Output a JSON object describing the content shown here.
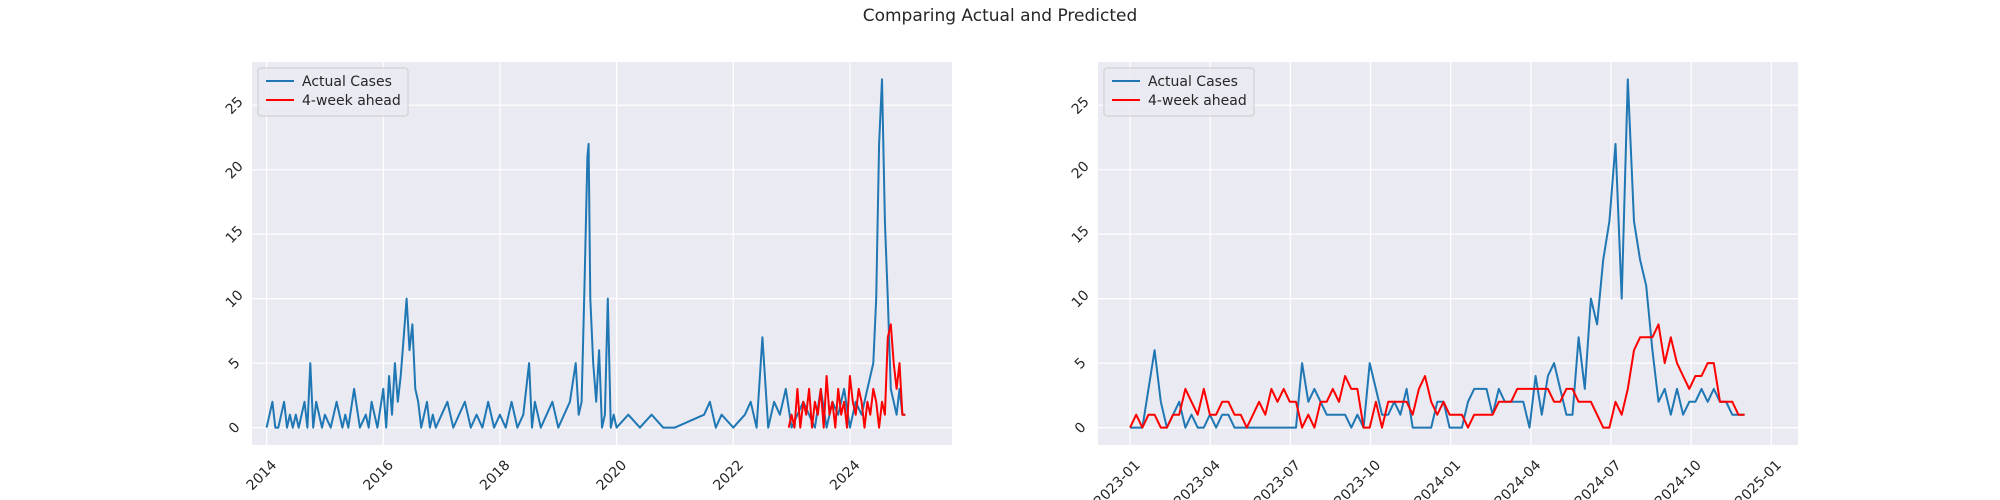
{
  "title": "Comparing Actual and Predicted",
  "colors": {
    "actual": "#1f77b4",
    "predicted": "#ff0000",
    "bg": "#eaeaf2",
    "grid": "#ffffff",
    "text": "#262626"
  },
  "chart_data": [
    {
      "type": "line",
      "title": "",
      "xlabel": "",
      "ylabel": "",
      "x_unit": "year",
      "xlim": [
        2013.75,
        2025.75
      ],
      "ylim": [
        -1.35,
        28.35
      ],
      "xticks": [
        2014,
        2016,
        2018,
        2020,
        2022,
        2024
      ],
      "xtick_labels": [
        "2014",
        "2016",
        "2018",
        "2020",
        "2022",
        "2024"
      ],
      "yticks": [
        0,
        5,
        10,
        15,
        20,
        25
      ],
      "ytick_labels": [
        "0",
        "5",
        "10",
        "15",
        "20",
        "25"
      ],
      "legend_position": "top-left",
      "series": [
        {
          "name": "Actual Cases",
          "color": "#1f77b4",
          "x": [
            2014.0,
            2014.1,
            2014.15,
            2014.2,
            2014.3,
            2014.35,
            2014.4,
            2014.45,
            2014.5,
            2014.55,
            2014.6,
            2014.65,
            2014.7,
            2014.75,
            2014.8,
            2014.85,
            2014.9,
            2014.95,
            2015.0,
            2015.1,
            2015.2,
            2015.3,
            2015.35,
            2015.4,
            2015.5,
            2015.6,
            2015.7,
            2015.75,
            2015.8,
            2015.9,
            2016.0,
            2016.05,
            2016.1,
            2016.15,
            2016.2,
            2016.25,
            2016.3,
            2016.35,
            2016.4,
            2016.45,
            2016.5,
            2016.55,
            2016.6,
            2016.65,
            2016.7,
            2016.75,
            2016.8,
            2016.85,
            2016.9,
            2017.0,
            2017.1,
            2017.2,
            2017.3,
            2017.4,
            2017.5,
            2017.6,
            2017.7,
            2017.8,
            2017.9,
            2018.0,
            2018.1,
            2018.2,
            2018.3,
            2018.4,
            2018.5,
            2018.55,
            2018.6,
            2018.7,
            2018.8,
            2018.9,
            2019.0,
            2019.1,
            2019.2,
            2019.3,
            2019.35,
            2019.4,
            2019.45,
            2019.5,
            2019.52,
            2019.55,
            2019.6,
            2019.65,
            2019.7,
            2019.75,
            2019.8,
            2019.85,
            2019.9,
            2019.95,
            2020.0,
            2020.2,
            2020.4,
            2020.6,
            2020.8,
            2021.0,
            2021.5,
            2021.6,
            2021.7,
            2021.8,
            2022.0,
            2022.2,
            2022.3,
            2022.4,
            2022.5,
            2022.6,
            2022.7,
            2022.8,
            2022.9,
            2023.0,
            2023.2,
            2023.4,
            2023.5,
            2023.6,
            2023.7,
            2023.8,
            2023.9,
            2024.0,
            2024.1,
            2024.2,
            2024.3,
            2024.4,
            2024.45,
            2024.5,
            2024.55,
            2024.6,
            2024.65,
            2024.7,
            2024.75,
            2024.8,
            2024.85,
            2024.9,
            2024.95
          ],
          "values": [
            0,
            2,
            0,
            0,
            2,
            0,
            1,
            0,
            1,
            0,
            1,
            2,
            0,
            5,
            0,
            2,
            1,
            0,
            1,
            0,
            2,
            0,
            1,
            0,
            3,
            0,
            1,
            0,
            2,
            0,
            3,
            0,
            4,
            1,
            5,
            2,
            4,
            7,
            10,
            6,
            8,
            3,
            2,
            0,
            1,
            2,
            0,
            1,
            0,
            1,
            2,
            0,
            1,
            2,
            0,
            1,
            0,
            2,
            0,
            1,
            0,
            2,
            0,
            1,
            5,
            0,
            2,
            0,
            1,
            2,
            0,
            1,
            2,
            5,
            1,
            2,
            11,
            21,
            22,
            10,
            5,
            2,
            6,
            0,
            1,
            10,
            0,
            1,
            0,
            1,
            0,
            1,
            0,
            0,
            1,
            2,
            0,
            1,
            0,
            1,
            2,
            0,
            7,
            0,
            2,
            1,
            3,
            0,
            2,
            0,
            3,
            0,
            2,
            1,
            3,
            0,
            2,
            1,
            3,
            5,
            10,
            22,
            27,
            16,
            10,
            3,
            2,
            1,
            3,
            1,
            1
          ]
        },
        {
          "name": "4-week ahead",
          "color": "#ff0000",
          "x": [
            2022.95,
            2023.0,
            2023.05,
            2023.1,
            2023.15,
            2023.2,
            2023.25,
            2023.3,
            2023.35,
            2023.4,
            2023.45,
            2023.5,
            2023.55,
            2023.6,
            2023.65,
            2023.7,
            2023.75,
            2023.8,
            2023.85,
            2023.9,
            2023.95,
            2024.0,
            2024.05,
            2024.1,
            2024.15,
            2024.2,
            2024.25,
            2024.3,
            2024.35,
            2024.4,
            2024.45,
            2024.5,
            2024.55,
            2024.6,
            2024.65,
            2024.7,
            2024.75,
            2024.8,
            2024.85,
            2024.9,
            2024.95
          ],
          "values": [
            0,
            1,
            0,
            3,
            0,
            2,
            1,
            3,
            0,
            2,
            1,
            3,
            0,
            4,
            1,
            2,
            0,
            3,
            1,
            2,
            0,
            4,
            2,
            1,
            3,
            2,
            0,
            2,
            1,
            3,
            2,
            0,
            2,
            1,
            7,
            8,
            5,
            3,
            5,
            1,
            1
          ]
        }
      ]
    },
    {
      "type": "line",
      "title": "",
      "xlabel": "",
      "ylabel": "",
      "x_unit": "month index (0 = 2023-01)",
      "xlim": [
        -1.2,
        25.0
      ],
      "ylim": [
        -1.35,
        28.35
      ],
      "xticks": [
        0,
        3,
        6,
        9,
        12,
        15,
        18,
        21,
        24
      ],
      "xtick_labels": [
        "2023-01",
        "2023-04",
        "2023-07",
        "2023-10",
        "2024-01",
        "2024-04",
        "2024-07",
        "2024-10",
        "2025-01"
      ],
      "yticks": [
        0,
        5,
        10,
        15,
        20,
        25
      ],
      "ytick_labels": [
        "0",
        "5",
        "10",
        "15",
        "20",
        "25"
      ],
      "legend_position": "top-left",
      "series": [
        {
          "name": "Actual Cases",
          "color": "#1f77b4",
          "x": [
            0,
            0.23,
            0.46,
            0.69,
            0.92,
            1.15,
            1.38,
            1.61,
            1.84,
            2.07,
            2.3,
            2.53,
            2.76,
            2.99,
            3.22,
            3.45,
            3.68,
            3.91,
            4.14,
            4.37,
            4.6,
            4.83,
            5.06,
            5.29,
            5.52,
            5.75,
            5.98,
            6.21,
            6.44,
            6.67,
            6.9,
            7.13,
            7.36,
            7.59,
            7.82,
            8.05,
            8.28,
            8.51,
            8.74,
            8.97,
            9.2,
            9.43,
            9.66,
            9.89,
            10.12,
            10.35,
            10.58,
            10.81,
            11.04,
            11.27,
            11.5,
            11.73,
            11.96,
            12.19,
            12.42,
            12.65,
            12.88,
            13.11,
            13.34,
            13.57,
            13.8,
            14.03,
            14.26,
            14.49,
            14.72,
            14.95,
            15.18,
            15.41,
            15.64,
            15.87,
            16.1,
            16.33,
            16.56,
            16.79,
            17.02,
            17.25,
            17.48,
            17.71,
            17.94,
            18.17,
            18.4,
            18.63,
            18.86,
            19.09,
            19.32,
            19.55,
            19.78,
            20.01,
            20.24,
            20.47,
            20.7,
            20.93,
            21.16,
            21.39,
            21.62,
            21.85,
            22.08,
            22.31,
            22.54,
            22.77,
            23.0
          ],
          "values": [
            0,
            0,
            0,
            3,
            6,
            2,
            0,
            1,
            2,
            0,
            1,
            0,
            0,
            1,
            0,
            1,
            1,
            0,
            0,
            0,
            0,
            0,
            0,
            0,
            0,
            0,
            0,
            0,
            5,
            2,
            3,
            2,
            1,
            1,
            1,
            1,
            0,
            1,
            0,
            5,
            3,
            1,
            1,
            2,
            1,
            3,
            0,
            0,
            0,
            0,
            2,
            2,
            0,
            0,
            0,
            2,
            3,
            3,
            3,
            1,
            3,
            2,
            2,
            2,
            2,
            0,
            4,
            1,
            4,
            5,
            3,
            1,
            1,
            7,
            3,
            10,
            8,
            13,
            16,
            22,
            10,
            27,
            16,
            13,
            11,
            6,
            2,
            3,
            1,
            3,
            1,
            2,
            2,
            3,
            2,
            3,
            2,
            2,
            1,
            1,
            1
          ]
        },
        {
          "name": "4-week ahead",
          "color": "#ff0000",
          "x": [
            0,
            0.23,
            0.46,
            0.69,
            0.92,
            1.15,
            1.38,
            1.61,
            1.84,
            2.07,
            2.3,
            2.53,
            2.76,
            2.99,
            3.22,
            3.45,
            3.68,
            3.91,
            4.14,
            4.37,
            4.6,
            4.83,
            5.06,
            5.29,
            5.52,
            5.75,
            5.98,
            6.21,
            6.44,
            6.67,
            6.9,
            7.13,
            7.36,
            7.59,
            7.82,
            8.05,
            8.28,
            8.51,
            8.74,
            8.97,
            9.2,
            9.43,
            9.66,
            9.89,
            10.12,
            10.35,
            10.58,
            10.81,
            11.04,
            11.27,
            11.5,
            11.73,
            11.96,
            12.19,
            12.42,
            12.65,
            12.88,
            13.11,
            13.34,
            13.57,
            13.8,
            14.03,
            14.26,
            14.49,
            14.72,
            14.95,
            15.18,
            15.41,
            15.64,
            15.87,
            16.1,
            16.33,
            16.56,
            16.79,
            17.02,
            17.25,
            17.48,
            17.71,
            17.94,
            18.17,
            18.4,
            18.63,
            18.86,
            19.09,
            19.32,
            19.55,
            19.78,
            20.01,
            20.24,
            20.47,
            20.7,
            20.93,
            21.16,
            21.39,
            21.62,
            21.85,
            22.08,
            22.31,
            22.54,
            22.77,
            23.0
          ],
          "values": [
            0,
            1,
            0,
            1,
            1,
            0,
            0,
            1,
            1,
            3,
            2,
            1,
            3,
            1,
            1,
            2,
            2,
            1,
            1,
            0,
            1,
            2,
            1,
            3,
            2,
            3,
            2,
            2,
            0,
            1,
            0,
            2,
            2,
            3,
            2,
            4,
            3,
            3,
            0,
            0,
            2,
            0,
            2,
            2,
            2,
            2,
            1,
            3,
            4,
            2,
            1,
            2,
            1,
            1,
            1,
            0,
            1,
            1,
            1,
            1,
            2,
            2,
            2,
            3,
            3,
            3,
            3,
            3,
            3,
            2,
            2,
            3,
            3,
            2,
            2,
            2,
            1,
            0,
            0,
            2,
            1,
            3,
            6,
            7,
            7,
            7,
            8,
            5,
            7,
            5,
            4,
            3,
            4,
            4,
            5,
            5,
            2,
            2,
            2,
            1,
            1
          ]
        }
      ]
    }
  ]
}
